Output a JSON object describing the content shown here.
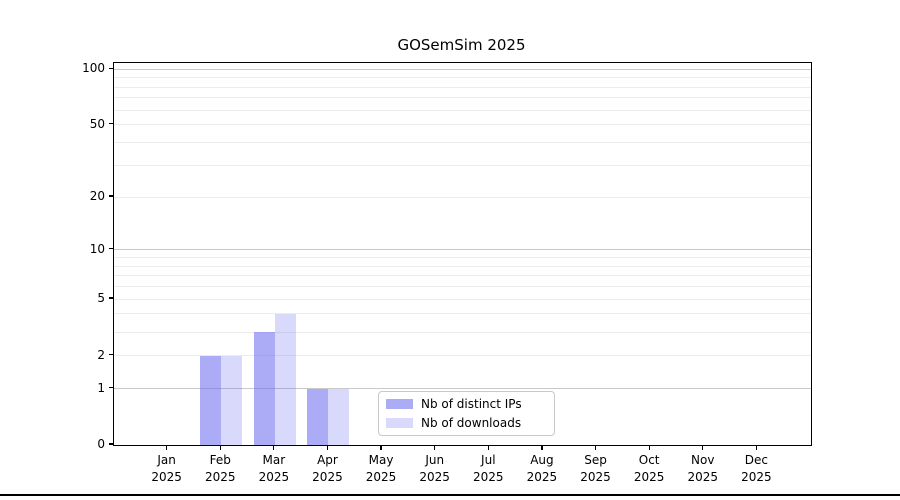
{
  "chart_data": {
    "type": "bar",
    "title": "GOSemSim 2025",
    "categories": [
      "Jan",
      "Feb",
      "Mar",
      "Apr",
      "May",
      "Jun",
      "Jul",
      "Aug",
      "Sep",
      "Oct",
      "Nov",
      "Dec"
    ],
    "year_label": "2025",
    "series": [
      {
        "name": "Nb of distinct IPs",
        "color": "rgba(102,102,238,0.55)",
        "values": [
          0,
          2,
          3,
          1,
          0,
          0,
          0,
          0,
          0,
          0,
          0,
          0
        ]
      },
      {
        "name": "Nb of downloads",
        "color": "rgba(102,102,238,0.25)",
        "values": [
          0,
          2,
          4,
          1,
          0,
          0,
          0,
          0,
          0,
          0,
          0,
          0
        ]
      }
    ],
    "y_axis": {
      "scale": "log1p",
      "tick_labels": [
        "0",
        "1",
        "2",
        "5",
        "10",
        "20",
        "50",
        "100"
      ],
      "tick_values": [
        0,
        1,
        2,
        5,
        10,
        20,
        50,
        100
      ],
      "major_gridlines": [
        1,
        10,
        100
      ],
      "minor_gridlines": [
        2,
        3,
        4,
        5,
        6,
        7,
        8,
        9,
        20,
        30,
        40,
        50,
        60,
        70,
        80,
        90
      ],
      "ylim": [
        0,
        108
      ]
    },
    "legend": {
      "position": "lower center"
    },
    "colors": {
      "major_grid": "#c9c9c9",
      "minor_grid": "#ececec",
      "spine": "#000000",
      "background": "#ffffff"
    }
  }
}
